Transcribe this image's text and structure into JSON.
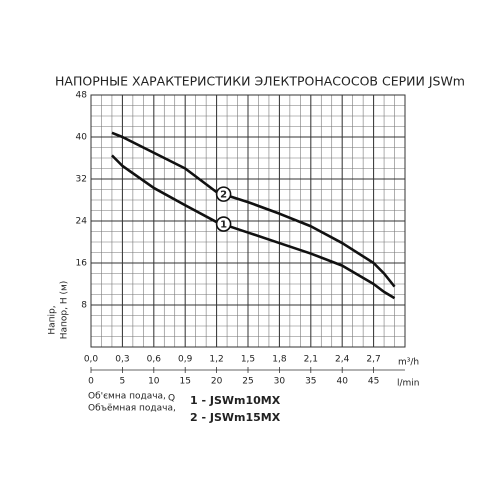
{
  "chart_data": {
    "type": "line",
    "title": "НАПОРНЫЕ ХАРАКТЕРИСТИКИ ЭЛЕКТРОНАСОСОВ СЕРИИ JSWm",
    "y_label": [
      "Напір,",
      "Напор, H (м)"
    ],
    "x_unit": "m³/h",
    "x2_unit": "l/min",
    "x_label": [
      "Об'ємна подача,",
      "Объёмная подача,"
    ],
    "x_symbol": "Q",
    "x": [
      0.2,
      0.3,
      0.6,
      0.9,
      1.2,
      1.5,
      1.8,
      2.1,
      2.4,
      2.7,
      2.8,
      2.9
    ],
    "series": [
      {
        "name": "1 - JSWm10MX",
        "label": "1",
        "color": "#111111",
        "values": [
          36.5,
          34.5,
          30.3,
          27,
          23.8,
          21.8,
          19.8,
          17.8,
          15.5,
          12,
          10.5,
          9.3
        ]
      },
      {
        "name": "2 - JSWm15MX",
        "label": "2",
        "color": "#111111",
        "values": [
          40.8,
          40,
          37,
          34,
          29.5,
          27.6,
          25.4,
          23,
          19.8,
          16,
          14,
          11.5
        ]
      }
    ],
    "xlim": [
      0,
      3
    ],
    "ylim": [
      0,
      48
    ],
    "xticks": [
      {
        "value": 0,
        "label": "0,0"
      },
      {
        "value": 0.3,
        "label": "0,3"
      },
      {
        "value": 0.6,
        "label": "0,6"
      },
      {
        "value": 0.9,
        "label": "0,9"
      },
      {
        "value": 1.2,
        "label": "1,2"
      },
      {
        "value": 1.5,
        "label": "1,5"
      },
      {
        "value": 1.8,
        "label": "1,8"
      },
      {
        "value": 2.1,
        "label": "2,1"
      },
      {
        "value": 2.4,
        "label": "2,4"
      },
      {
        "value": 2.7,
        "label": "2,7"
      }
    ],
    "yticks": [
      8,
      16,
      24,
      32,
      40,
      48
    ],
    "x2lim": [
      0,
      50
    ],
    "x2ticks": [
      0,
      5,
      10,
      15,
      20,
      25,
      30,
      35,
      40,
      45
    ],
    "grid": true,
    "grid_step_x": 0.1,
    "grid_step_y": 2
  }
}
